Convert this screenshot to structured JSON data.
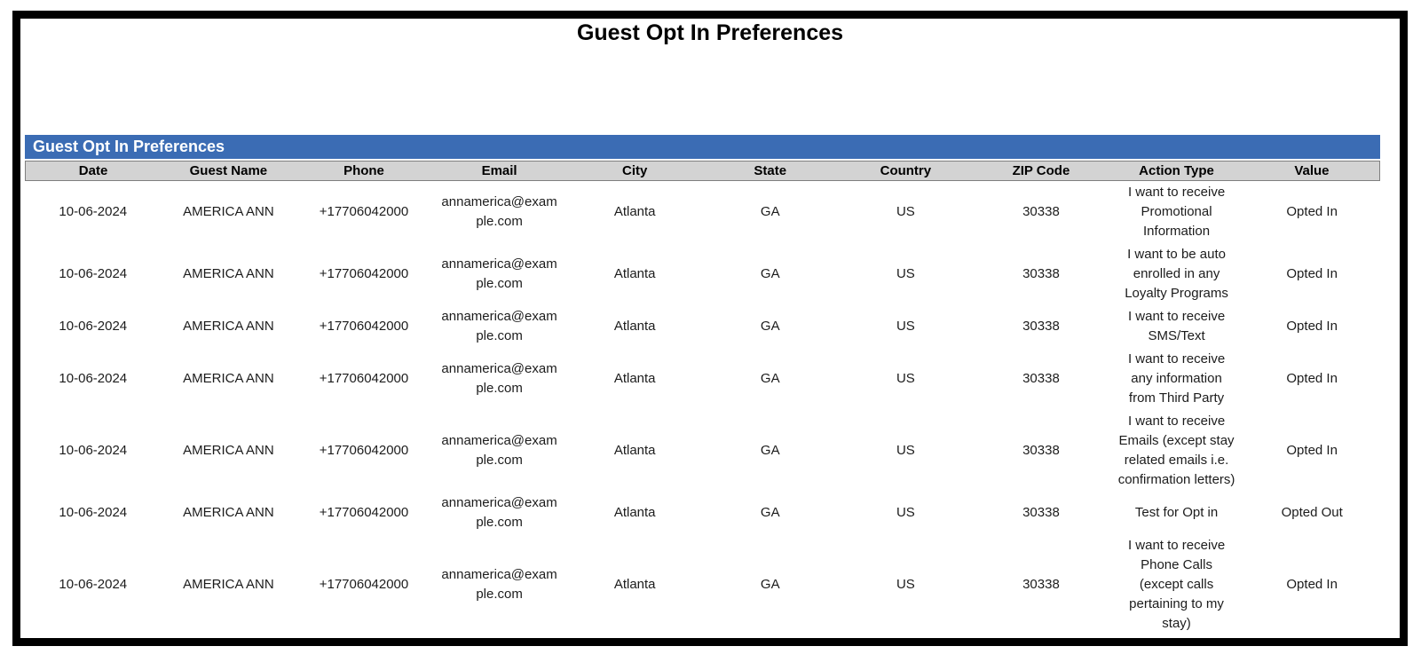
{
  "page": {
    "title": "Guest Opt In Preferences"
  },
  "report": {
    "section_title": "Guest Opt In Preferences",
    "columns": [
      {
        "key": "date",
        "label": "Date"
      },
      {
        "key": "guest_name",
        "label": "Guest Name"
      },
      {
        "key": "phone",
        "label": "Phone"
      },
      {
        "key": "email",
        "label": "Email"
      },
      {
        "key": "city",
        "label": "City"
      },
      {
        "key": "state",
        "label": "State"
      },
      {
        "key": "country",
        "label": "Country"
      },
      {
        "key": "zip_code",
        "label": "ZIP Code"
      },
      {
        "key": "action_type",
        "label": "Action Type"
      },
      {
        "key": "value",
        "label": "Value"
      }
    ],
    "rows": [
      {
        "date": "10-06-2024",
        "guest_name": "AMERICA ANN",
        "phone": "+17706042000",
        "email": "annamerica@example.com",
        "city": "Atlanta",
        "state": "GA",
        "country": "US",
        "zip_code": "30338",
        "action_type": "I want to receive Promotional Information",
        "value": "Opted In"
      },
      {
        "date": "10-06-2024",
        "guest_name": "AMERICA ANN",
        "phone": "+17706042000",
        "email": "annamerica@example.com",
        "city": "Atlanta",
        "state": "GA",
        "country": "US",
        "zip_code": "30338",
        "action_type": "I want to be auto enrolled in any Loyalty Programs",
        "value": "Opted In"
      },
      {
        "date": "10-06-2024",
        "guest_name": "AMERICA ANN",
        "phone": "+17706042000",
        "email": "annamerica@example.com",
        "city": "Atlanta",
        "state": "GA",
        "country": "US",
        "zip_code": "30338",
        "action_type": "I want to receive SMS/Text",
        "value": "Opted In"
      },
      {
        "date": "10-06-2024",
        "guest_name": "AMERICA ANN",
        "phone": "+17706042000",
        "email": "annamerica@example.com",
        "city": "Atlanta",
        "state": "GA",
        "country": "US",
        "zip_code": "30338",
        "action_type": "I want to receive any information from Third Party",
        "value": "Opted In"
      },
      {
        "date": "10-06-2024",
        "guest_name": "AMERICA ANN",
        "phone": "+17706042000",
        "email": "annamerica@example.com",
        "city": "Atlanta",
        "state": "GA",
        "country": "US",
        "zip_code": "30338",
        "action_type": "I want to receive Emails (except stay related emails i.e. confirmation letters)",
        "value": "Opted In"
      },
      {
        "date": "10-06-2024",
        "guest_name": "AMERICA ANN",
        "phone": "+17706042000",
        "email": "annamerica@example.com",
        "city": "Atlanta",
        "state": "GA",
        "country": "US",
        "zip_code": "30338",
        "action_type": "Test for Opt in",
        "value": "Opted Out"
      },
      {
        "date": "10-06-2024",
        "guest_name": "AMERICA ANN",
        "phone": "+17706042000",
        "email": "annamerica@example.com",
        "city": "Atlanta",
        "state": "GA",
        "country": "US",
        "zip_code": "30338",
        "action_type": "I want to receive Phone Calls (except calls pertaining to my stay)",
        "value": "Opted In"
      }
    ]
  },
  "colors": {
    "section_header_bg": "#3B6CB4",
    "section_header_text": "#FFFFFF",
    "column_header_bg": "#D3D3D3",
    "column_header_border": "#7F7F7F",
    "page_border": "#000000",
    "body_text": "#1C1C1C"
  }
}
